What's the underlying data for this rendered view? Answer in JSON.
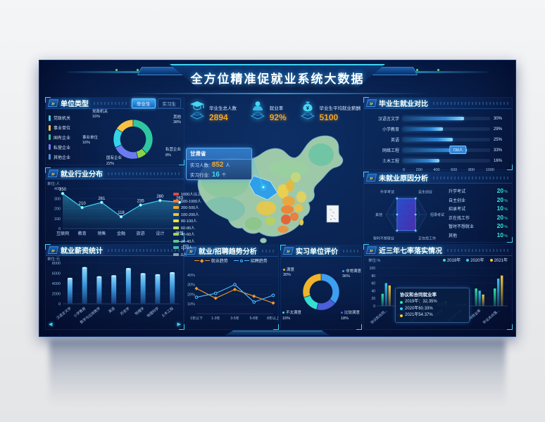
{
  "header": {
    "title": "全方位精准促就业系统大数据"
  },
  "stats": [
    {
      "icon": "graduation-cap-icon",
      "label": "毕业生总人数",
      "value": "2894"
    },
    {
      "icon": "person-icon",
      "label": "就业率",
      "value": "92%"
    },
    {
      "icon": "money-bag-icon",
      "label": "毕业生平均就业薪酬",
      "value": "5100"
    }
  ],
  "map": {
    "tooltip": {
      "title": "甘肃省",
      "rows": [
        {
          "label": "实习人数:",
          "value": "852",
          "unit": "人",
          "color": "#f6a62a"
        },
        {
          "label": "实习行业:",
          "value": "16",
          "unit": "个",
          "color": "#49d6f2"
        }
      ]
    },
    "legend": [
      {
        "label": "1000人以上",
        "color": "#e8483b"
      },
      {
        "label": "500-1000人",
        "color": "#f07d33"
      },
      {
        "label": "200-500人",
        "color": "#f6a229"
      },
      {
        "label": "100-200人",
        "color": "#f7c32b"
      },
      {
        "label": "80-100人",
        "color": "#f3e03a"
      },
      {
        "label": "60-80人",
        "color": "#cfe045"
      },
      {
        "label": "40-60人",
        "color": "#9ed35c"
      },
      {
        "label": "20-40人",
        "color": "#5ec98a"
      },
      {
        "label": "1-20人",
        "color": "#46b8a9"
      },
      {
        "label": "0人",
        "color": "#8aa0b4"
      }
    ]
  },
  "chart_data": [
    {
      "id": "unit_type",
      "type": "pie",
      "title": "单位类型",
      "tabs": [
        "毕业生",
        "实习生"
      ],
      "active_tab": "毕业生",
      "slices": [
        {
          "label": "党政机关",
          "value": 16,
          "color": "#f5c242"
        },
        {
          "label": "其他",
          "value": 38,
          "color": "#2ec7a0"
        },
        {
          "label": "私营企业",
          "value": 8,
          "color": "#8bd448"
        },
        {
          "label": "国有企业",
          "value": 22,
          "color": "#6b7bf0"
        },
        {
          "label": "事业单位",
          "value": 16,
          "color": "#35d3e8"
        }
      ],
      "legend": [
        {
          "label": "党政机关",
          "color": "#35d3e8"
        },
        {
          "label": "事业单位",
          "color": "#f5c242"
        },
        {
          "label": "国有企业",
          "color": "#2ec7a0"
        },
        {
          "label": "私营企业",
          "color": "#6b7bf0"
        },
        {
          "label": "其他企业",
          "color": "#4a90d9"
        }
      ]
    },
    {
      "id": "industry",
      "type": "line",
      "title": "就业行业分布",
      "ylabel": "单位:人",
      "ylim": [
        0,
        400
      ],
      "yticks": [
        0,
        100,
        200,
        300,
        400
      ],
      "categories": [
        "互联网",
        "教育",
        "销售",
        "金融",
        "旅游",
        "设计",
        "建筑"
      ],
      "values": [
        350,
        210,
        261,
        118,
        235,
        280,
        263
      ],
      "line_color": "#3fd4f5"
    },
    {
      "id": "salary",
      "type": "bar",
      "title": "就业薪资统计",
      "ylabel": "单位:元",
      "ylim": [
        0,
        8000
      ],
      "yticks": [
        0,
        2000,
        4000,
        6000,
        8000
      ],
      "categories": [
        "汉语言文学",
        "小学教育",
        "数学与应用数学",
        "英语",
        "历史学",
        "物理学",
        "地理科学",
        "土木工程"
      ],
      "values": [
        5100,
        7200,
        5400,
        5600,
        7000,
        6000,
        5800,
        6200
      ],
      "nav_left": "◀",
      "nav_right": "▶"
    },
    {
      "id": "grad_compare",
      "type": "hbar",
      "title": "毕业生就业对比",
      "xlim": [
        0,
        1000
      ],
      "xticks": [
        0,
        200,
        400,
        600,
        800,
        1000
      ],
      "rows": [
        {
          "label": "汉语言文学",
          "value": 700,
          "pct": "30%"
        },
        {
          "label": "小学教育",
          "value": 460,
          "pct": "29%"
        },
        {
          "label": "英语",
          "value": 570,
          "pct": "25%"
        },
        {
          "label": "网络工程",
          "value": 730,
          "pct": "33%",
          "badge": "730人"
        },
        {
          "label": "土木工程",
          "value": 420,
          "pct": "16%"
        }
      ]
    },
    {
      "id": "unemployed_reason",
      "type": "radar",
      "title": "未就业原因分析",
      "axes": [
        "升学考试",
        "自主创业",
        "招录考试",
        "正在找工作",
        "暂时不想就业",
        "其他"
      ],
      "values": [
        20,
        20,
        10,
        20,
        20,
        10
      ],
      "max": 22,
      "list": [
        {
          "label": "升学考试",
          "value": "20",
          "unit": "%"
        },
        {
          "label": "自主创业",
          "value": "20",
          "unit": "%"
        },
        {
          "label": "招录考试",
          "value": "10",
          "unit": "%"
        },
        {
          "label": "正在找工作",
          "value": "20",
          "unit": "%"
        },
        {
          "label": "暂时不想就业",
          "value": "20",
          "unit": "%"
        },
        {
          "label": "其他",
          "value": "10",
          "unit": "%"
        }
      ]
    },
    {
      "id": "trend",
      "type": "line-multi",
      "title": "就业/招聘趋势分析",
      "categories": [
        "1年以下",
        "1-3年",
        "3-5年",
        "5-8年",
        "8年以上"
      ],
      "ylim": [
        0,
        45
      ],
      "yticks": [
        10,
        20,
        30,
        40
      ],
      "ytick_suffix": "%",
      "series": [
        {
          "name": "就业趋势",
          "color": "#f59a23",
          "marker": "diamond",
          "values": [
            26,
            16,
            25,
            18,
            11
          ]
        },
        {
          "name": "招聘趋势",
          "color": "#4db8ff",
          "marker": "circle",
          "values": [
            17,
            21,
            30,
            12,
            19
          ]
        }
      ]
    },
    {
      "id": "evaluation",
      "type": "pie",
      "title": "实习单位评价",
      "slices": [
        {
          "label": "非常满意",
          "value": 36,
          "color": "#3d9ff0"
        },
        {
          "label": "比较满意",
          "value": 18,
          "color": "#4a5fd8"
        },
        {
          "label": "不太满意",
          "value": 16,
          "color": "#35e0d0"
        },
        {
          "label": "满意",
          "value": 30,
          "color": "#f0b429"
        }
      ]
    },
    {
      "id": "seven_rates",
      "type": "bar-grouped",
      "title": "近三年七率落实情况",
      "ylabel": "单位:%",
      "ylim": [
        0,
        100
      ],
      "yticks": [
        0,
        20,
        40,
        60,
        80,
        100
      ],
      "categories": [
        "协议和合同...",
        "创业率",
        "灵活就业率",
        "升学率",
        "暂不就业率",
        "待就业率",
        "毕业去向落..."
      ],
      "series": [
        {
          "name": "2019年",
          "color": "#2ee6a8",
          "values": [
            32,
            2,
            8,
            7,
            4,
            46,
            46
          ]
        },
        {
          "name": "2020年",
          "color": "#38c8f5",
          "values": [
            60,
            2,
            12,
            10,
            5,
            40,
            72
          ]
        },
        {
          "name": "2021年",
          "color": "#f5c83a",
          "values": [
            54,
            2,
            14,
            13,
            5,
            30,
            80
          ]
        }
      ],
      "tooltip": {
        "title": "协议和合同就业率",
        "rows": [
          {
            "color": "#2ee6a8",
            "text": "2019年：32.35%"
          },
          {
            "color": "#38c8f5",
            "text": "2020年60.33%"
          },
          {
            "color": "#f5c83a",
            "text": "2021年54.37%"
          }
        ]
      }
    }
  ]
}
